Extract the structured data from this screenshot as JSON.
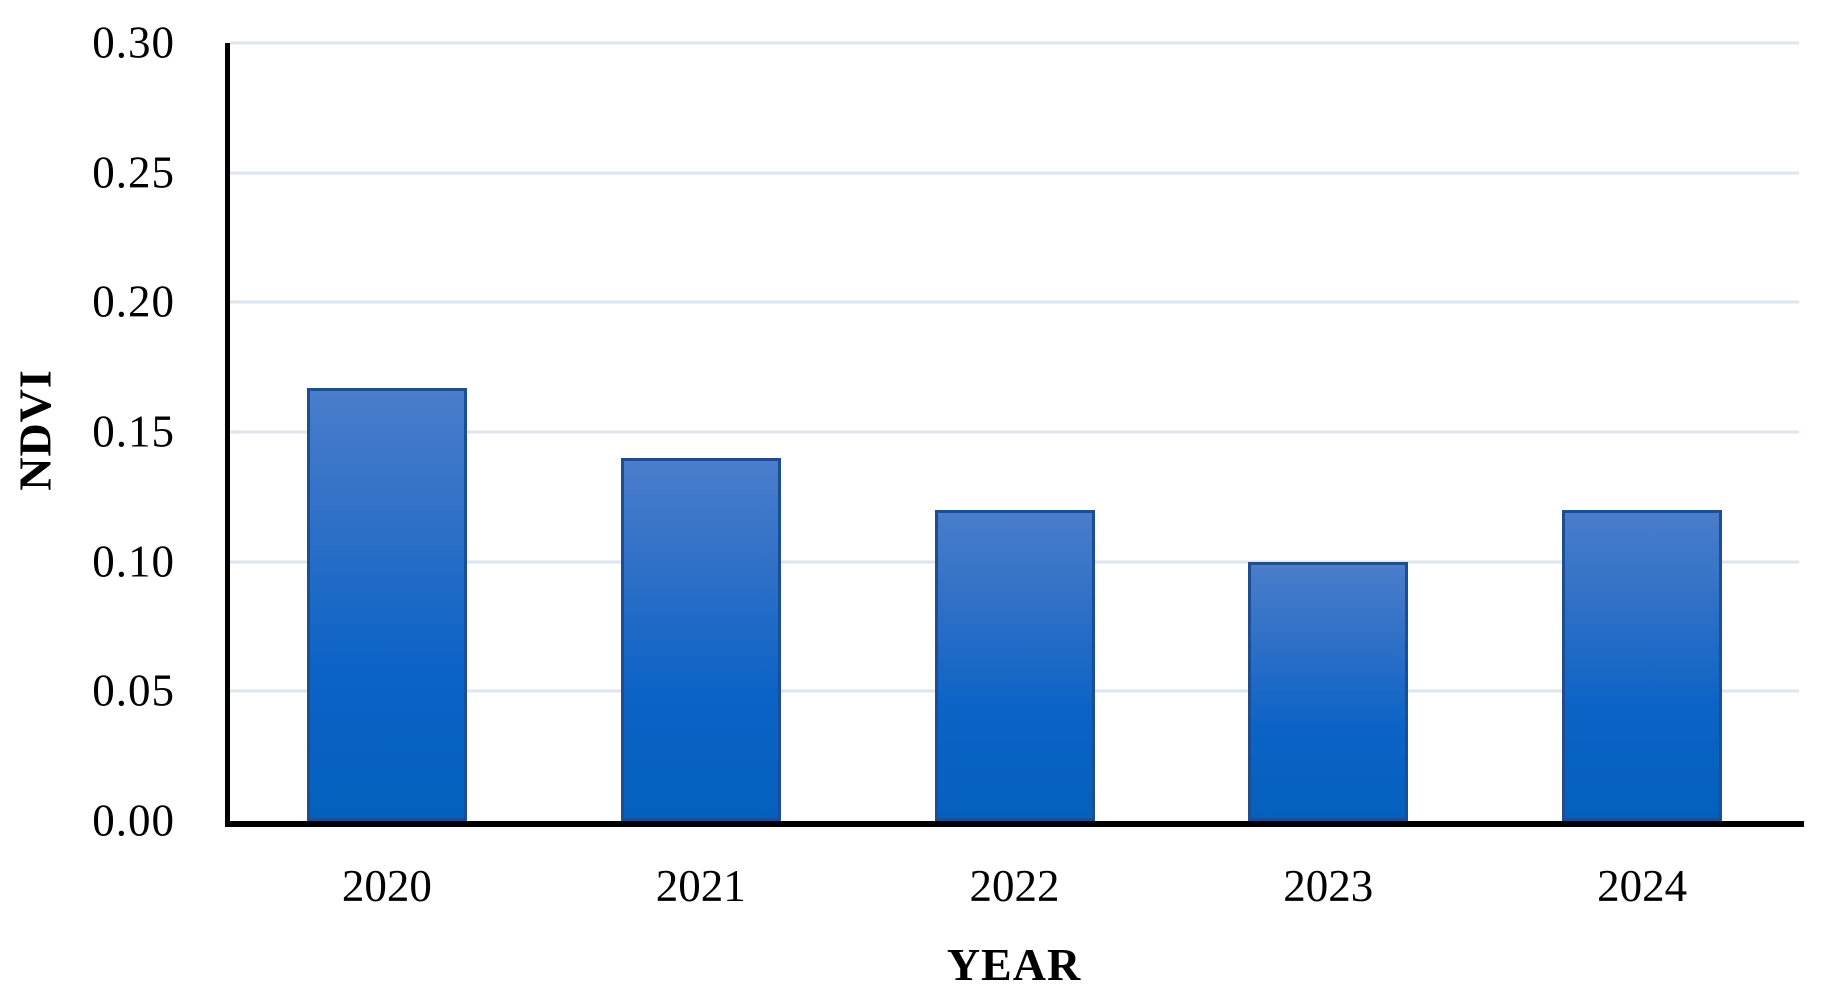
{
  "chart_data": {
    "type": "bar",
    "title": "",
    "categories": [
      "2020",
      "2021",
      "2022",
      "2023",
      "2024"
    ],
    "values": [
      0.167,
      0.14,
      0.12,
      0.1,
      0.12
    ],
    "xlabel": "YEAR",
    "ylabel": "NDVI",
    "ylim": [
      0,
      0.3
    ],
    "ytick_interval": 0.05,
    "ytick_labels": [
      "0.30",
      "0.25",
      "0.20",
      "0.15",
      "0.10",
      "0.05",
      "0.00"
    ],
    "grid": "horizontal",
    "legend_position": "none",
    "colors": {
      "bar_gradient_top": "#4a7dcb",
      "bar_gradient_upper_mid": "#2f70c7",
      "bar_gradient_lower_mid": "#0b63c6",
      "bar_gradient_bottom": "#0560bd",
      "bar_border": "#1d4e91",
      "gridline": "#dde6ee",
      "axis": "#000000",
      "background": "#ffffff",
      "text": "#000000"
    }
  }
}
